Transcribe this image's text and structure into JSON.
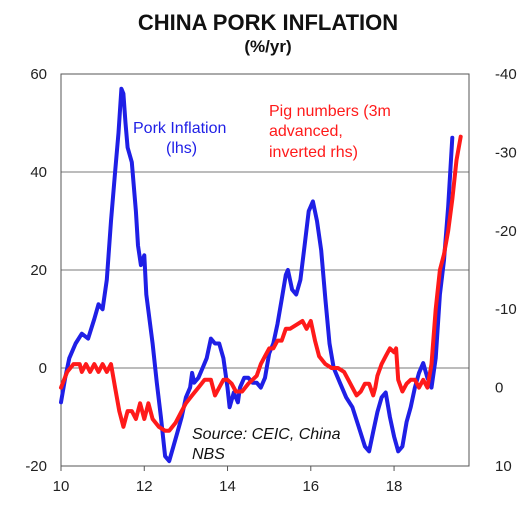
{
  "chart_data": {
    "type": "line",
    "title": "CHINA PORK INFLATION",
    "subtitle": "(%/yr)",
    "x_ticks": [
      "10",
      "12",
      "14",
      "16",
      "18"
    ],
    "x_tick_values": [
      2010,
      2012,
      2014,
      2016,
      2018
    ],
    "xlim": [
      2010,
      2019.8
    ],
    "y_left_ticks": [
      "60",
      "40",
      "20",
      "0",
      "-20"
    ],
    "y_left_tick_values": [
      60,
      40,
      20,
      0,
      -20
    ],
    "ylim_left": [
      -20,
      60
    ],
    "y_right_ticks": [
      "-40",
      "-30",
      "-20",
      "-10",
      "0",
      "10"
    ],
    "y_right_tick_values": [
      -40,
      -30,
      -20,
      -10,
      0,
      10
    ],
    "ylim_right": [
      10,
      -40
    ],
    "right_axis_inverted": true,
    "grid": "horizontal",
    "annotations": {
      "pork_label_1": "Pork Inflation",
      "pork_label_2": "(lhs)",
      "pig_label_1": "Pig numbers (3m",
      "pig_label_2": "advanced,",
      "pig_label_3": "inverted rhs)",
      "source_1": "Source: CEIC, China",
      "source_2": "NBS"
    },
    "colors": {
      "pork": "#1f1fe6",
      "pig": "#ff1a1a"
    },
    "series": [
      {
        "name": "Pork Inflation",
        "axis": "left",
        "points": [
          [
            2010.0,
            -7
          ],
          [
            2010.1,
            -2
          ],
          [
            2010.2,
            2
          ],
          [
            2010.35,
            5
          ],
          [
            2010.5,
            7
          ],
          [
            2010.65,
            6
          ],
          [
            2010.8,
            10
          ],
          [
            2010.9,
            13
          ],
          [
            2011.0,
            12
          ],
          [
            2011.1,
            18
          ],
          [
            2011.2,
            30
          ],
          [
            2011.3,
            40
          ],
          [
            2011.38,
            48
          ],
          [
            2011.45,
            57
          ],
          [
            2011.5,
            56
          ],
          [
            2011.55,
            50
          ],
          [
            2011.6,
            45
          ],
          [
            2011.7,
            42
          ],
          [
            2011.8,
            32
          ],
          [
            2011.85,
            25
          ],
          [
            2011.92,
            21
          ],
          [
            2012.0,
            23
          ],
          [
            2012.05,
            15
          ],
          [
            2012.2,
            5
          ],
          [
            2012.3,
            -3
          ],
          [
            2012.4,
            -10
          ],
          [
            2012.5,
            -18
          ],
          [
            2012.6,
            -19
          ],
          [
            2012.7,
            -16
          ],
          [
            2012.8,
            -13
          ],
          [
            2012.9,
            -10
          ],
          [
            2013.0,
            -6
          ],
          [
            2013.1,
            -4
          ],
          [
            2013.15,
            -1
          ],
          [
            2013.2,
            -3
          ],
          [
            2013.3,
            -2
          ],
          [
            2013.4,
            0
          ],
          [
            2013.5,
            2
          ],
          [
            2013.6,
            6
          ],
          [
            2013.7,
            5
          ],
          [
            2013.8,
            5
          ],
          [
            2013.9,
            2
          ],
          [
            2014.0,
            -4
          ],
          [
            2014.05,
            -8
          ],
          [
            2014.15,
            -5
          ],
          [
            2014.25,
            -7
          ],
          [
            2014.3,
            -4
          ],
          [
            2014.4,
            -2
          ],
          [
            2014.5,
            -2
          ],
          [
            2014.6,
            -3
          ],
          [
            2014.7,
            -3
          ],
          [
            2014.8,
            -4
          ],
          [
            2014.9,
            -2
          ],
          [
            2015.0,
            3
          ],
          [
            2015.1,
            5
          ],
          [
            2015.2,
            9
          ],
          [
            2015.3,
            14
          ],
          [
            2015.4,
            19
          ],
          [
            2015.45,
            20
          ],
          [
            2015.55,
            16
          ],
          [
            2015.65,
            15
          ],
          [
            2015.75,
            18
          ],
          [
            2015.85,
            25
          ],
          [
            2015.95,
            32
          ],
          [
            2016.05,
            34
          ],
          [
            2016.15,
            30
          ],
          [
            2016.25,
            24
          ],
          [
            2016.35,
            14
          ],
          [
            2016.45,
            5
          ],
          [
            2016.55,
            0
          ],
          [
            2016.7,
            -3
          ],
          [
            2016.85,
            -6
          ],
          [
            2017.0,
            -8
          ],
          [
            2017.15,
            -12
          ],
          [
            2017.3,
            -16
          ],
          [
            2017.4,
            -17
          ],
          [
            2017.5,
            -13
          ],
          [
            2017.6,
            -9
          ],
          [
            2017.7,
            -6
          ],
          [
            2017.8,
            -5
          ],
          [
            2017.9,
            -10
          ],
          [
            2018.0,
            -14
          ],
          [
            2018.1,
            -17
          ],
          [
            2018.2,
            -16
          ],
          [
            2018.3,
            -11
          ],
          [
            2018.4,
            -8
          ],
          [
            2018.5,
            -4
          ],
          [
            2018.6,
            -1
          ],
          [
            2018.7,
            1
          ],
          [
            2018.8,
            -2
          ],
          [
            2018.9,
            -4
          ],
          [
            2019.0,
            2
          ],
          [
            2019.1,
            15
          ],
          [
            2019.2,
            22
          ],
          [
            2019.3,
            33
          ],
          [
            2019.4,
            47
          ]
        ]
      },
      {
        "name": "Pig numbers",
        "axis": "right",
        "points": [
          [
            2010.0,
            0
          ],
          [
            2010.15,
            -2
          ],
          [
            2010.3,
            -3
          ],
          [
            2010.45,
            -3
          ],
          [
            2010.5,
            -2
          ],
          [
            2010.6,
            -3
          ],
          [
            2010.7,
            -2
          ],
          [
            2010.8,
            -3
          ],
          [
            2010.9,
            -2
          ],
          [
            2011.0,
            -3
          ],
          [
            2011.1,
            -2
          ],
          [
            2011.2,
            -3
          ],
          [
            2011.3,
            0
          ],
          [
            2011.4,
            3
          ],
          [
            2011.5,
            5
          ],
          [
            2011.6,
            3
          ],
          [
            2011.7,
            3
          ],
          [
            2011.8,
            4
          ],
          [
            2011.9,
            2
          ],
          [
            2012.0,
            4
          ],
          [
            2012.1,
            2
          ],
          [
            2012.2,
            4
          ],
          [
            2012.35,
            5
          ],
          [
            2012.5,
            5.5
          ],
          [
            2012.6,
            5.5
          ],
          [
            2012.75,
            4.5
          ],
          [
            2012.9,
            3
          ],
          [
            2013.0,
            2
          ],
          [
            2013.15,
            1
          ],
          [
            2013.3,
            0
          ],
          [
            2013.45,
            -1
          ],
          [
            2013.6,
            -1
          ],
          [
            2013.7,
            1
          ],
          [
            2013.8,
            0
          ],
          [
            2013.9,
            -1
          ],
          [
            2014.0,
            -1
          ],
          [
            2014.1,
            -0.5
          ],
          [
            2014.2,
            0.5
          ],
          [
            2014.35,
            0.5
          ],
          [
            2014.5,
            -0.5
          ],
          [
            2014.6,
            -1
          ],
          [
            2014.7,
            -1.5
          ],
          [
            2014.8,
            -3
          ],
          [
            2014.9,
            -4
          ],
          [
            2015.0,
            -5
          ],
          [
            2015.1,
            -5
          ],
          [
            2015.2,
            -6
          ],
          [
            2015.3,
            -6
          ],
          [
            2015.4,
            -7.5
          ],
          [
            2015.5,
            -7.5
          ],
          [
            2015.65,
            -8
          ],
          [
            2015.8,
            -8.5
          ],
          [
            2015.9,
            -7.5
          ],
          [
            2016.0,
            -8.5
          ],
          [
            2016.1,
            -6
          ],
          [
            2016.2,
            -4
          ],
          [
            2016.35,
            -3
          ],
          [
            2016.5,
            -2.5
          ],
          [
            2016.65,
            -2.5
          ],
          [
            2016.8,
            -2
          ],
          [
            2016.9,
            -1
          ],
          [
            2017.0,
            0
          ],
          [
            2017.1,
            1
          ],
          [
            2017.2,
            0.5
          ],
          [
            2017.3,
            -0.5
          ],
          [
            2017.4,
            -0.5
          ],
          [
            2017.5,
            1
          ],
          [
            2017.55,
            0
          ],
          [
            2017.6,
            -1.5
          ],
          [
            2017.7,
            -3
          ],
          [
            2017.8,
            -4
          ],
          [
            2017.9,
            -5
          ],
          [
            2018.0,
            -4.5
          ],
          [
            2018.05,
            -5
          ],
          [
            2018.1,
            -1
          ],
          [
            2018.2,
            0.5
          ],
          [
            2018.3,
            -0.5
          ],
          [
            2018.4,
            -1
          ],
          [
            2018.5,
            -1
          ],
          [
            2018.6,
            0
          ],
          [
            2018.7,
            -1
          ],
          [
            2018.8,
            0
          ],
          [
            2018.9,
            -3
          ],
          [
            2019.0,
            -10
          ],
          [
            2019.1,
            -15
          ],
          [
            2019.2,
            -17
          ],
          [
            2019.3,
            -20
          ],
          [
            2019.4,
            -24
          ],
          [
            2019.5,
            -29
          ],
          [
            2019.6,
            -32
          ]
        ]
      }
    ]
  }
}
